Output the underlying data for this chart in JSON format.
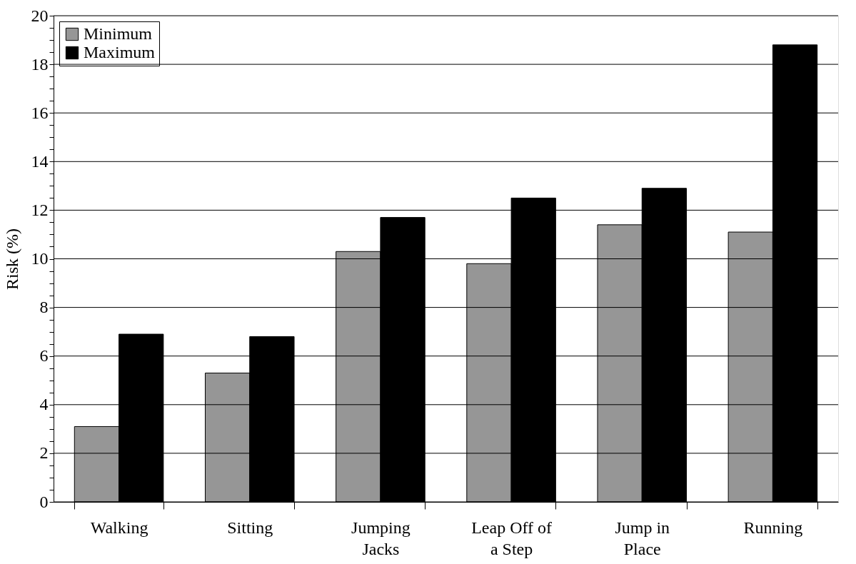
{
  "chart_data": {
    "type": "bar",
    "ylabel": "Risk (%)",
    "categories": [
      "Walking",
      "Sitting",
      "Jumping\nJacks",
      "Leap Off of\na Step",
      "Jump in\nPlace",
      "Running"
    ],
    "series": [
      {
        "name": "Minimum",
        "color": "#969696",
        "values": [
          3.1,
          5.3,
          10.3,
          9.8,
          11.4,
          11.1
        ]
      },
      {
        "name": "Maximum",
        "color": "#000000",
        "values": [
          6.9,
          6.8,
          11.7,
          12.5,
          12.9,
          18.8
        ]
      }
    ],
    "ylim": [
      0,
      20
    ],
    "yticks": [
      0,
      {
        "value": 0.5,
        "label": null
      },
      {
        "value": 1,
        "label": null
      },
      {
        "value": 1.5,
        "label": null
      },
      2,
      {
        "value": 2.5,
        "label": null
      },
      {
        "value": 3,
        "label": null
      },
      {
        "value": 3.5,
        "label": null
      },
      4,
      {
        "value": 4.5,
        "label": null
      },
      {
        "value": 5,
        "label": null
      },
      {
        "value": 5.5,
        "label": null
      },
      6,
      {
        "value": 6.5,
        "label": null
      },
      {
        "value": 7,
        "label": null
      },
      {
        "value": 7.5,
        "label": null
      },
      8,
      {
        "value": 8.5,
        "label": null
      },
      {
        "value": 9,
        "label": null
      },
      {
        "value": 9.5,
        "label": null
      },
      10,
      {
        "value": 10.5,
        "label": null
      },
      {
        "value": 11,
        "label": null
      },
      {
        "value": 11.5,
        "label": null
      },
      12,
      {
        "value": 12.5,
        "label": null
      },
      {
        "value": 13,
        "label": null
      },
      {
        "value": 13.5,
        "label": null
      },
      14,
      {
        "value": 14.5,
        "label": null
      },
      {
        "value": 15,
        "label": null
      },
      {
        "value": 15.5,
        "label": null
      },
      16,
      {
        "value": 16.5,
        "label": null
      },
      {
        "value": 17,
        "label": null
      },
      {
        "value": 17.5,
        "label": null
      },
      18,
      {
        "value": 18.5,
        "label": null
      },
      {
        "value": 19,
        "label": null
      },
      {
        "value": 19.5,
        "label": null
      },
      20
    ],
    "grid": "y",
    "legend": "top left"
  }
}
